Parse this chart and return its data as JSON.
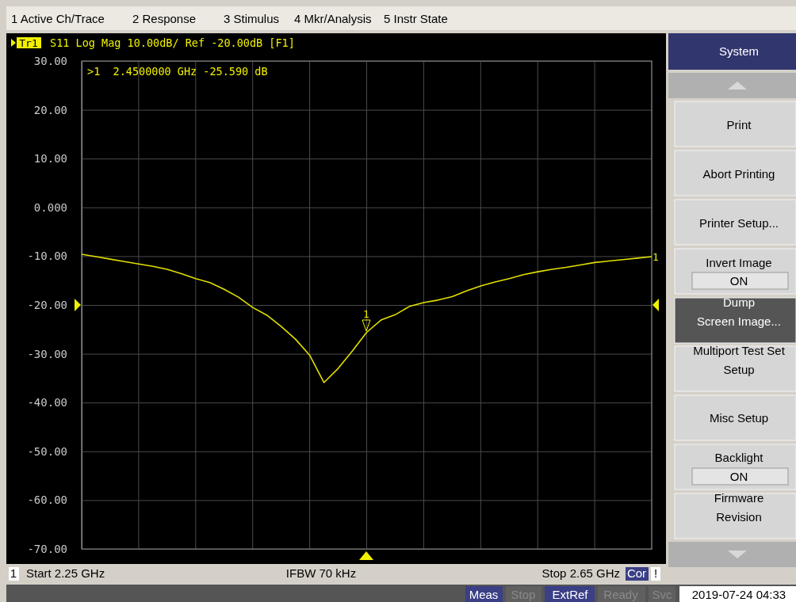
{
  "chart_data": {
    "type": "line",
    "title": "S11 Log Mag 10.00dB/ Ref -20.00dB [F1]",
    "categories": [
      null,
      null,
      null,
      null,
      null,
      null,
      null,
      null,
      null,
      null,
      null,
      null,
      null,
      null,
      null,
      null,
      null,
      null,
      null,
      null,
      null,
      null,
      null,
      null,
      null,
      null,
      null,
      null,
      null,
      null,
      null,
      null,
      null,
      null,
      null,
      null,
      null,
      null,
      null,
      null,
      null
    ],
    "ylim": [
      -70,
      30
    ],
    "yticks": [
      {
        "value": 30,
        "label": "30.00"
      },
      {
        "value": 20,
        "label": "20.00"
      },
      {
        "value": 10,
        "label": "10.00"
      },
      {
        "value": 0,
        "label": "0.000"
      },
      {
        "value": -10,
        "label": "-10.00"
      },
      {
        "value": -20,
        "label": "-20.00"
      },
      {
        "value": -30,
        "label": "-30.00"
      },
      {
        "value": -40,
        "label": "-40.00"
      },
      {
        "value": -50,
        "label": "-50.00"
      },
      {
        "value": -60,
        "label": "-60.00"
      },
      {
        "value": -70,
        "label": "-70.00"
      }
    ],
    "tick_labels": "y",
    "grid": true,
    "line_style": "solid",
    "series": [
      {
        "color": "#e0e000",
        "values": [
          -9.6,
          -10.1,
          -10.6,
          -11.1,
          -11.6,
          -12.1,
          -12.7,
          -13.6,
          -14.6,
          -15.4,
          -16.8,
          -18.4,
          -20.5,
          -22.1,
          -24.4,
          -27.0,
          -30.3,
          -35.9,
          -33.0,
          -29.4,
          -25.6,
          -23.1,
          -22.0,
          -20.3,
          -19.5,
          -19.0,
          -18.3,
          -17.1,
          -16.1,
          -15.3,
          -14.6,
          -13.8,
          -13.2,
          -12.7,
          -12.3,
          -11.8,
          -11.3,
          -11.0,
          -10.7,
          -10.4,
          -10.1
        ]
      }
    ],
    "annotations": [
      "Tr1",
      ">1  2.4500000 GHz -25.590 dB",
      "1",
      "1",
      "1 Active Ch/Trace",
      "2 Response",
      "3 Stimulus",
      "4 Mkr/Analysis",
      "5 Instr State",
      "1",
      "Start 2.25 GHz",
      "IFBW 70 kHz",
      "Stop 2.65 GHz",
      "Cor",
      "!",
      "Meas",
      "Stop",
      "ExtRef",
      "Ready",
      "Svc",
      "2019-07-24 04:33",
      "System",
      "Print",
      "Abort Printing",
      "Printer Setup...",
      "Invert Image",
      "ON",
      "Dump\nScreen Image...",
      "Multiport Test Set\nSetup",
      "Misc Setup",
      "Backlight",
      "ON",
      "Firmware\nRevision"
    ]
  }
}
